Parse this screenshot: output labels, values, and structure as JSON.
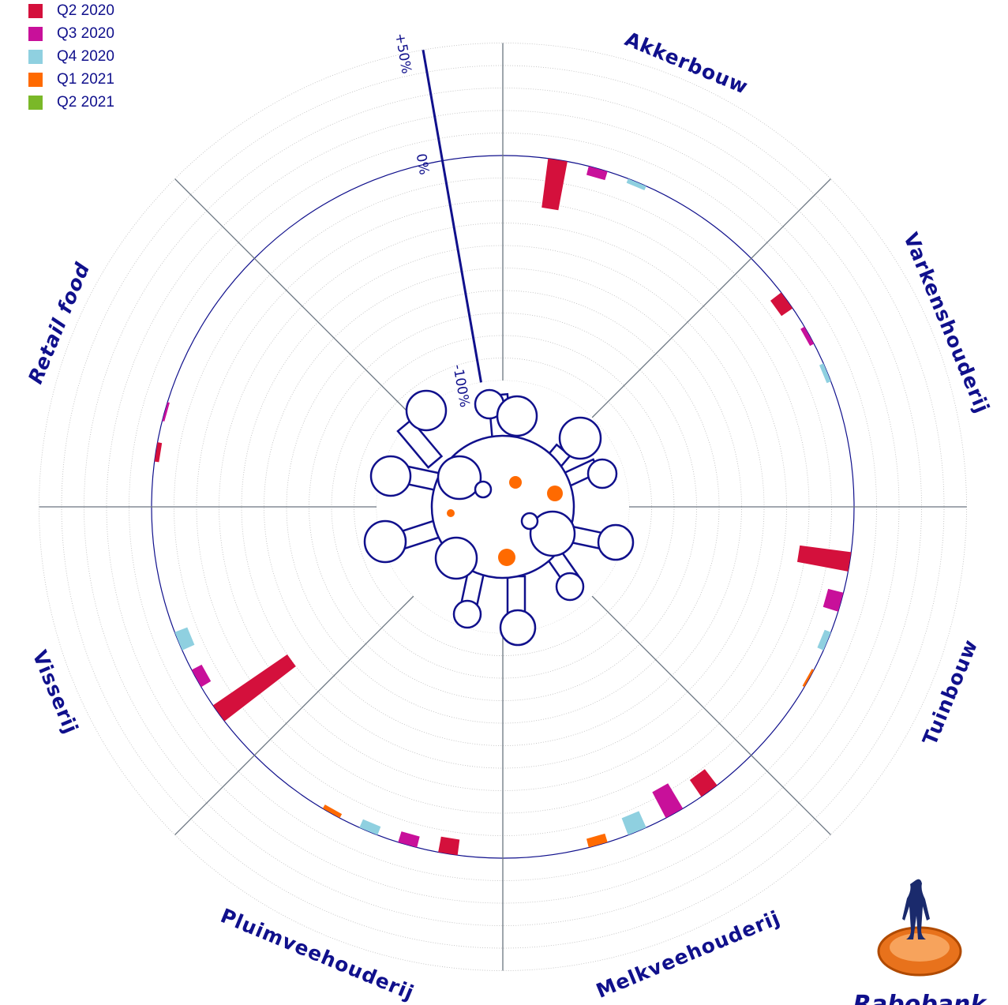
{
  "chart_data": {
    "type": "radial_bar",
    "categories": [
      "Akkerbouw",
      "Varkenshouderij",
      "Tuinbouw",
      "Melkveehouderij",
      "Pluimveehouderij",
      "Visserij",
      "Retail food"
    ],
    "series": [
      {
        "name": "Q2 2020",
        "color": "#d4103c",
        "values": [
          -22,
          -6,
          -23,
          -9,
          -7,
          -40,
          -2
        ]
      },
      {
        "name": "Q3 2020",
        "color": "#c8109a",
        "values": [
          -4,
          -2,
          -7,
          -13,
          -5,
          -5,
          -1
        ]
      },
      {
        "name": "Q4 2020",
        "color": "#8fd0e0",
        "values": [
          -2,
          -2,
          -3,
          -8,
          -4,
          -6,
          0
        ]
      },
      {
        "name": "Q1 2021",
        "color": "#ff6a00",
        "values": [
          0,
          0,
          -1,
          -4,
          -2,
          0,
          0
        ]
      },
      {
        "name": "Q2 2021",
        "color": "#7ab828",
        "values": [
          0,
          0,
          0,
          0,
          0,
          0,
          0
        ]
      }
    ],
    "ylim": [
      -100,
      50
    ],
    "yticks": [
      {
        "value": -100,
        "label": "-100%"
      },
      {
        "value": 0,
        "label": "0%"
      },
      {
        "value": 50,
        "label": "+50%"
      }
    ],
    "ring_step": 10,
    "grid": true
  },
  "logo": {
    "text": "Rabobank"
  }
}
